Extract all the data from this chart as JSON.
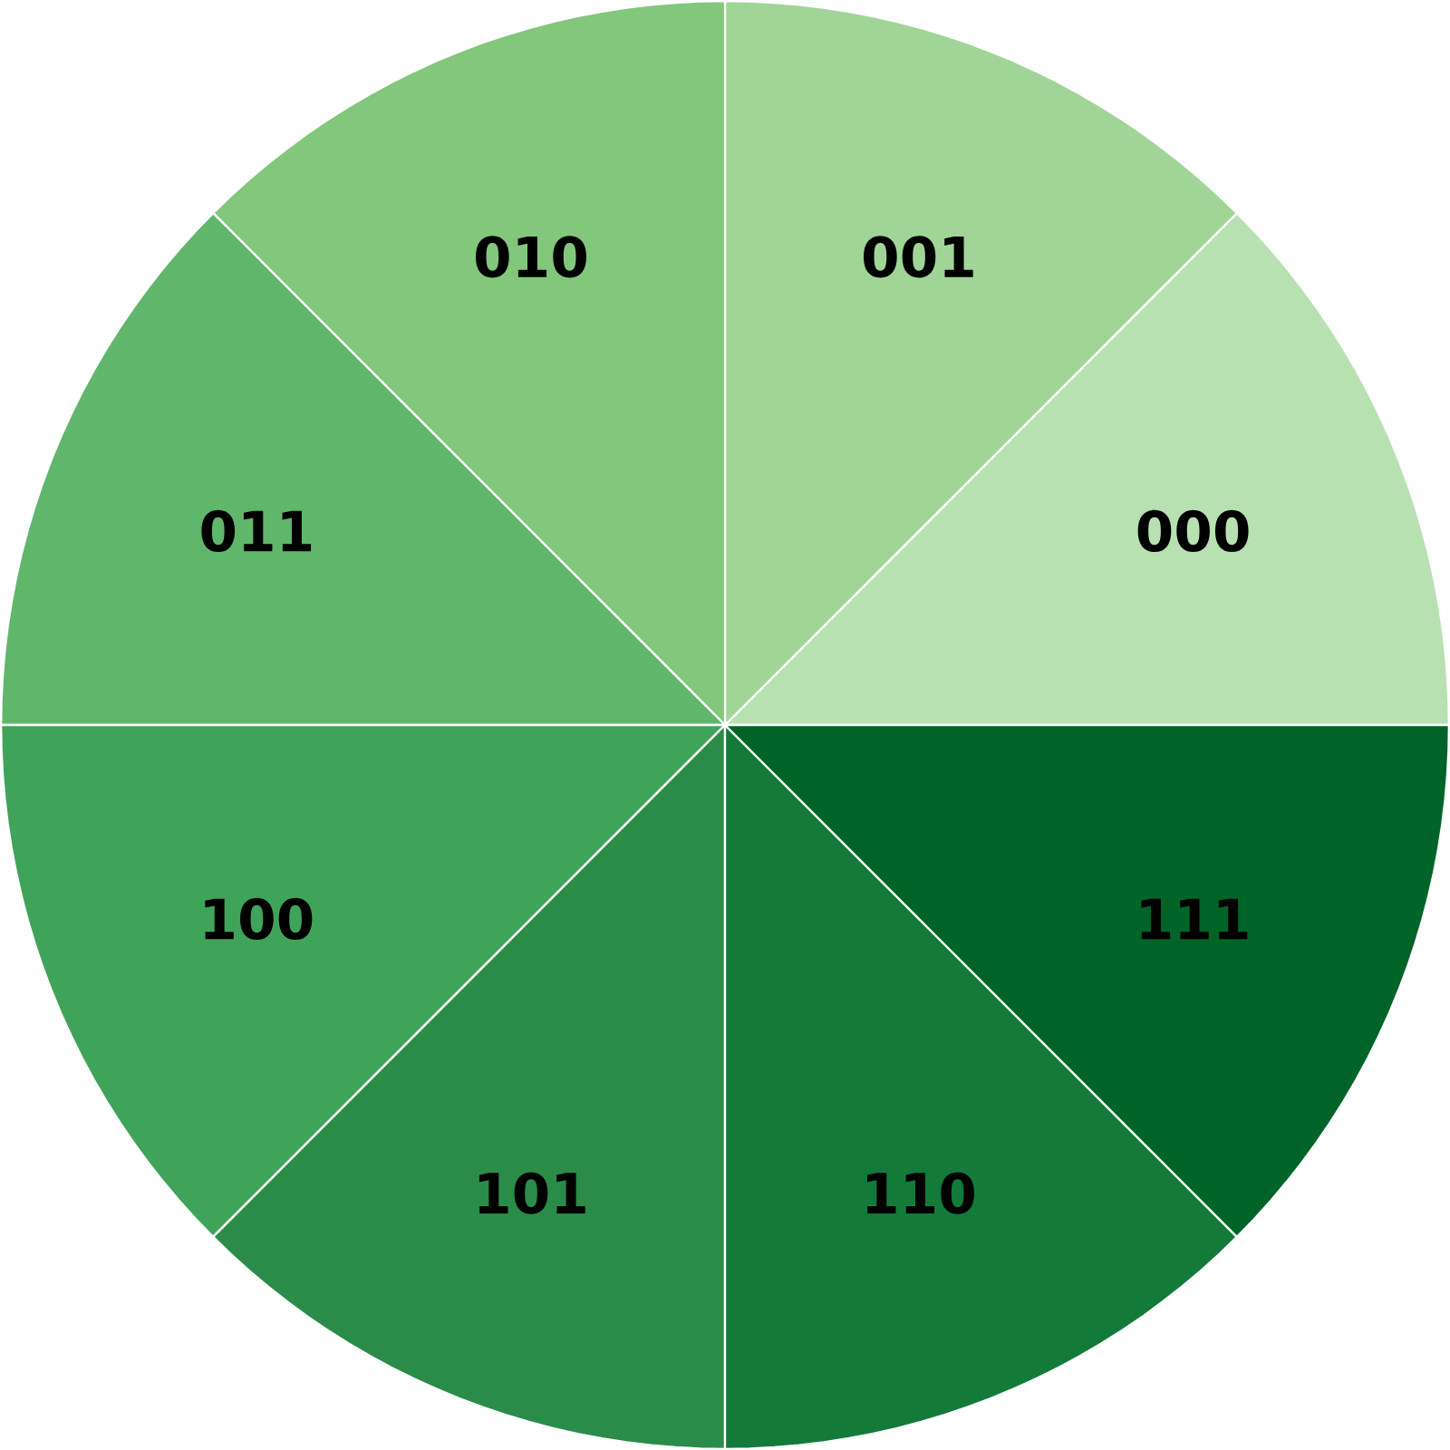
{
  "chart_data": {
    "type": "pie",
    "categories": [
      "000",
      "001",
      "010",
      "011",
      "100",
      "101",
      "110",
      "111"
    ],
    "values": [
      12.5,
      12.5,
      12.5,
      12.5,
      12.5,
      12.5,
      12.5,
      12.5
    ],
    "colors": [
      "#b8e1b1",
      "#a0d597",
      "#82c77c",
      "#60b76c",
      "#40a35a",
      "#2a8c48",
      "#137a3a",
      "#006428"
    ]
  }
}
